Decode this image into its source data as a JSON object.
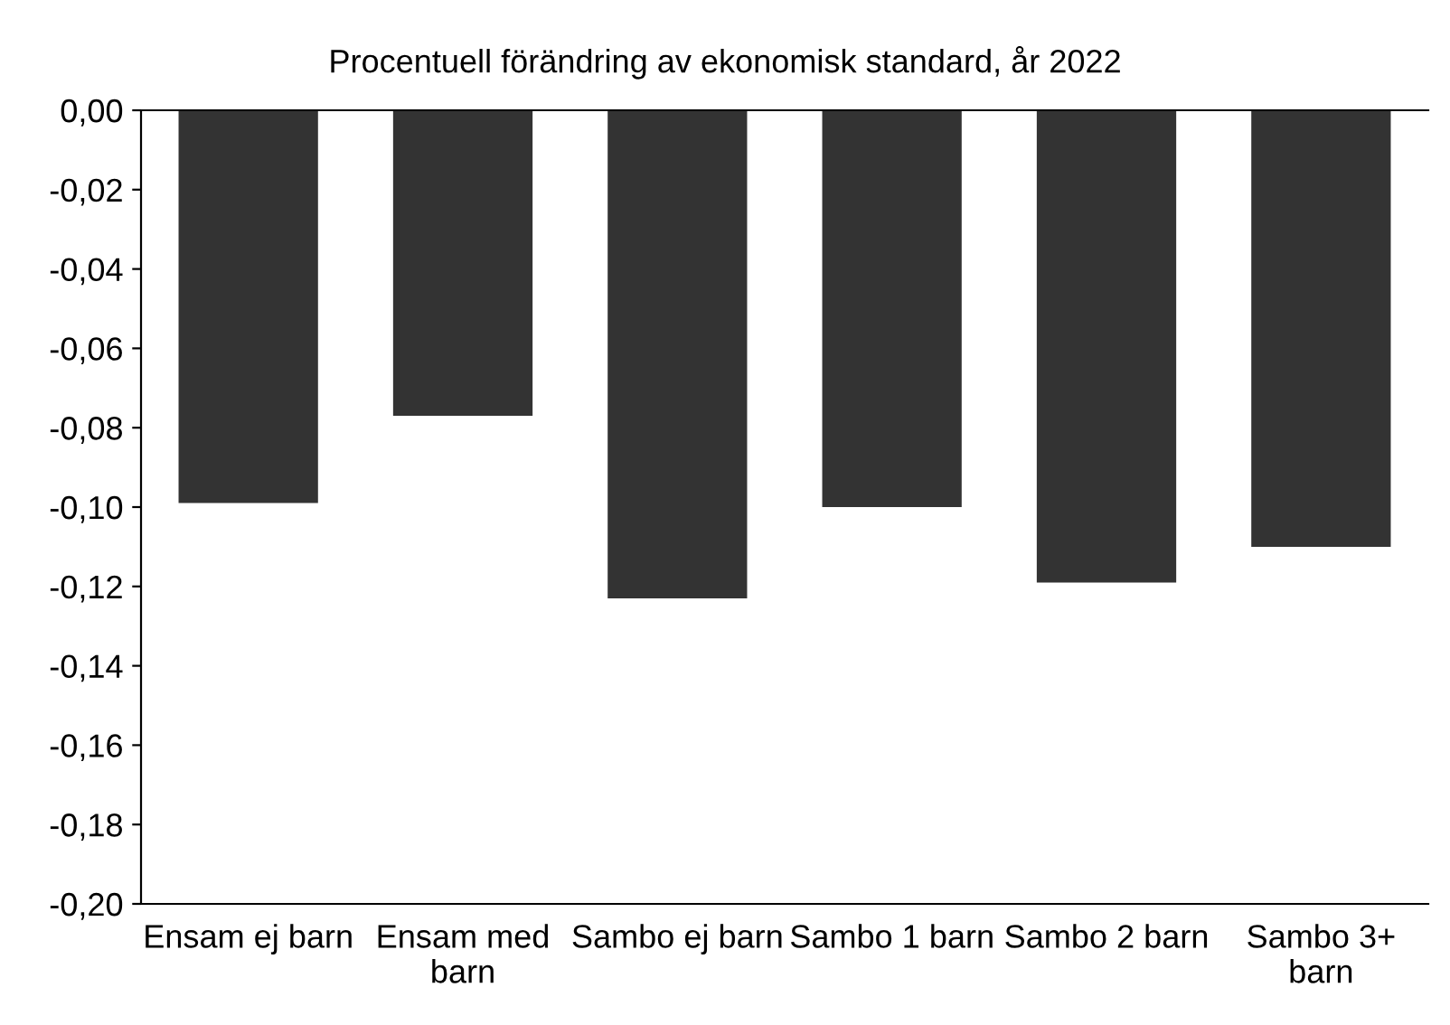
{
  "chart_data": {
    "type": "bar",
    "title": "Procentuell förändring av ekonomisk standard, år 2022",
    "categories": [
      "Ensam ej barn",
      "Ensam med\nbarn",
      "Sambo ej barn",
      "Sambo 1 barn",
      "Sambo 2 barn",
      "Sambo 3+\nbarn"
    ],
    "values": [
      -0.099,
      -0.077,
      -0.123,
      -0.1,
      -0.119,
      -0.11
    ],
    "color": "#333333",
    "ylim": [
      -0.2,
      0
    ],
    "yticks": [
      {
        "value": 0,
        "label": "0,00"
      },
      {
        "value": -0.02,
        "label": "-0,02"
      },
      {
        "value": -0.04,
        "label": "-0,04"
      },
      {
        "value": -0.06,
        "label": "-0,06"
      },
      {
        "value": -0.08,
        "label": "-0,08"
      },
      {
        "value": -0.1,
        "label": "-0,10"
      },
      {
        "value": -0.12,
        "label": "-0,12"
      },
      {
        "value": -0.14,
        "label": "-0,14"
      },
      {
        "value": -0.16,
        "label": "-0,16"
      },
      {
        "value": -0.18,
        "label": "-0,18"
      },
      {
        "value": -0.2,
        "label": "-0,20"
      }
    ],
    "grid": false,
    "legend": false
  }
}
